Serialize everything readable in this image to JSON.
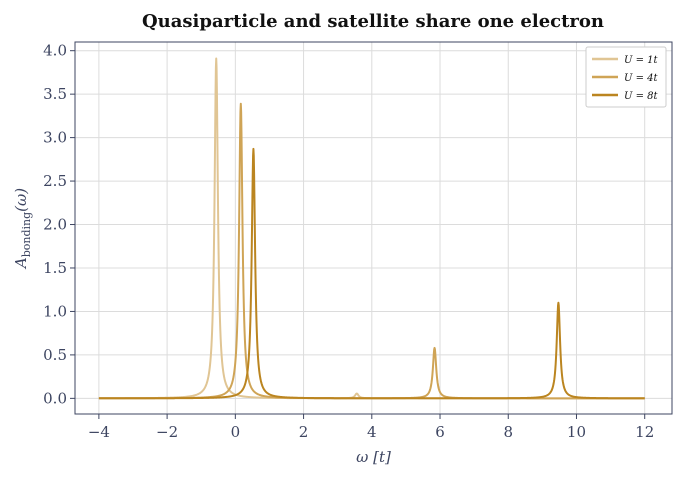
{
  "chart_data": {
    "type": "line",
    "title": "Quasiparticle and satellite share one electron",
    "xlabel": "ω  [t]",
    "ylabel": "A_bonding(ω)",
    "ylabel_main": "A",
    "ylabel_sub": "bonding",
    "ylabel_tail": "(ω)",
    "xlim": [
      -4.7,
      12.8
    ],
    "ylim": [
      -0.18,
      4.1
    ],
    "x_ticks": [
      -4,
      -2,
      0,
      2,
      4,
      6,
      8,
      10,
      12
    ],
    "x_tick_labels": [
      "−4",
      "−2",
      "0",
      "2",
      "4",
      "6",
      "8",
      "10",
      "12"
    ],
    "y_ticks": [
      0.0,
      0.5,
      1.0,
      1.5,
      2.0,
      2.5,
      3.0,
      3.5,
      4.0
    ],
    "y_tick_labels": [
      "0.0",
      "0.5",
      "1.0",
      "1.5",
      "2.0",
      "2.5",
      "3.0",
      "3.5",
      "4.0"
    ],
    "grid": true,
    "legend_position": "top-right",
    "x_range": [
      -4,
      12
    ],
    "series": [
      {
        "name": "U = 1t",
        "color": "#e0c594",
        "peaks": [
          {
            "x": -0.56,
            "height": 3.91,
            "width": 0.06
          },
          {
            "x": 3.56,
            "height": 0.055,
            "width": 0.06
          }
        ]
      },
      {
        "name": "U = 4t",
        "color": "#cfa456",
        "peaks": [
          {
            "x": 0.16,
            "height": 3.39,
            "width": 0.06
          },
          {
            "x": 5.84,
            "height": 0.58,
            "width": 0.06
          }
        ]
      },
      {
        "name": "U = 8t",
        "color": "#bb8520",
        "peaks": [
          {
            "x": 0.53,
            "height": 2.87,
            "width": 0.06
          },
          {
            "x": 9.47,
            "height": 1.1,
            "width": 0.06
          }
        ]
      }
    ]
  }
}
